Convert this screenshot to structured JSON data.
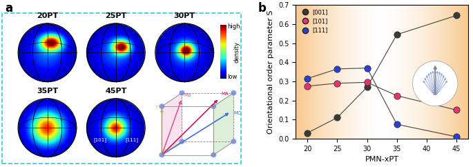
{
  "panel_a": {
    "label": "a",
    "pole_figures": [
      "20PT",
      "25PT",
      "30PT",
      "35PT",
      "45PT"
    ],
    "colorbar": {
      "title": "density",
      "high": "high",
      "low": "low"
    },
    "annotations": [
      "[101]",
      "[111]"
    ],
    "cube_labels": [
      "T",
      "MA",
      "MB",
      "MC"
    ]
  },
  "chart_data": {
    "type": "line",
    "panel_label": "b",
    "xlabel": "PMN-xPT",
    "ylabel": "Orientational order parameter S",
    "x": [
      20,
      25,
      30,
      35,
      45
    ],
    "xlim": [
      18,
      47
    ],
    "xticks": [
      20,
      25,
      30,
      35,
      40,
      45
    ],
    "ylim": [
      0.0,
      0.7
    ],
    "yticks": [
      0.0,
      0.1,
      0.2,
      0.3,
      0.4,
      0.5,
      0.6,
      0.7
    ],
    "legend": "upper left",
    "series": [
      {
        "name": "[001]",
        "color": "#3a3a3a",
        "marker": "o",
        "line_style": "solid",
        "values": [
          0.03,
          0.11,
          0.27,
          0.545,
          0.645
        ]
      },
      {
        "name": "[101]",
        "color": "#e8336e",
        "marker": "o",
        "line_style": "solid",
        "values": [
          0.275,
          0.29,
          0.295,
          0.225,
          0.15
        ]
      },
      {
        "name": "[111]",
        "color": "#2b3fd6",
        "marker": "o",
        "line_style": "solid",
        "values": [
          0.315,
          0.365,
          0.37,
          0.075,
          0.01
        ]
      }
    ]
  }
}
